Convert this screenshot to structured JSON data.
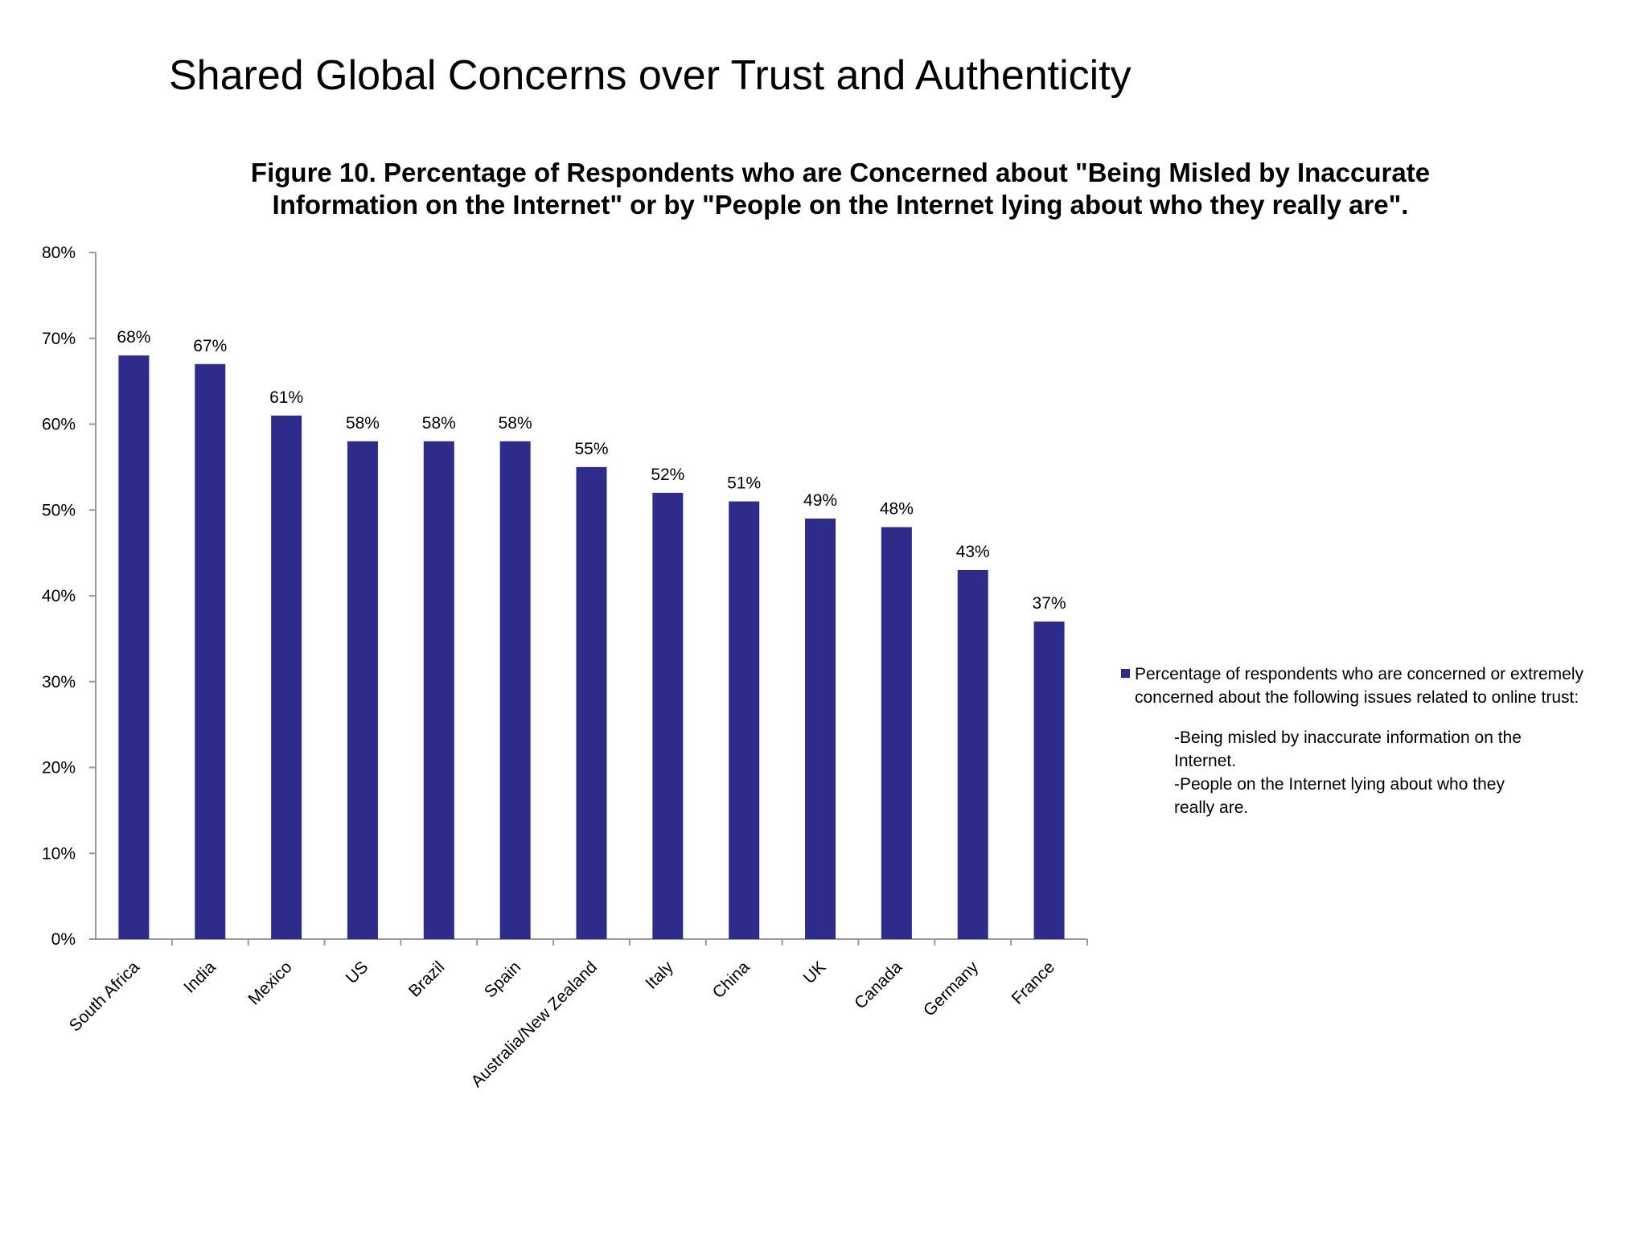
{
  "slide": {
    "title": "Shared Global Concerns over Trust and Authenticity"
  },
  "chart_data": {
    "type": "bar",
    "title": "Figure 10. Percentage of Respondents who are Concerned about \"Being Misled by Inaccurate Information on the Internet\" or by \"People on the Internet lying about who they really are\".",
    "xlabel": "",
    "ylabel": "",
    "ylim": [
      0,
      80
    ],
    "y_ticks": [
      "0%",
      "10%",
      "20%",
      "30%",
      "40%",
      "50%",
      "60%",
      "70%",
      "80%"
    ],
    "categories": [
      "South Africa",
      "India",
      "Mexico",
      "US",
      "Brazil",
      "Spain",
      "Australia/New Zealand",
      "Italy",
      "China",
      "UK",
      "Canada",
      "Germany",
      "France"
    ],
    "series": [
      {
        "name": "Percentage of respondents who are concerned or extremely concerned about the following issues related to online trust:",
        "values": [
          68,
          67,
          61,
          58,
          58,
          58,
          55,
          52,
          51,
          49,
          48,
          43,
          37
        ],
        "labels": [
          "68%",
          "67%",
          "61%",
          "58%",
          "58%",
          "58%",
          "55%",
          "52%",
          "51%",
          "49%",
          "48%",
          "43%",
          "37%"
        ]
      }
    ],
    "legend_notes": [
      "-Being misled by inaccurate information on the Internet.",
      "-People on the Internet lying about who they really are."
    ],
    "legend": "right",
    "grid": false,
    "bar_color": "#2e2c8a",
    "axis_color": "#999999"
  }
}
